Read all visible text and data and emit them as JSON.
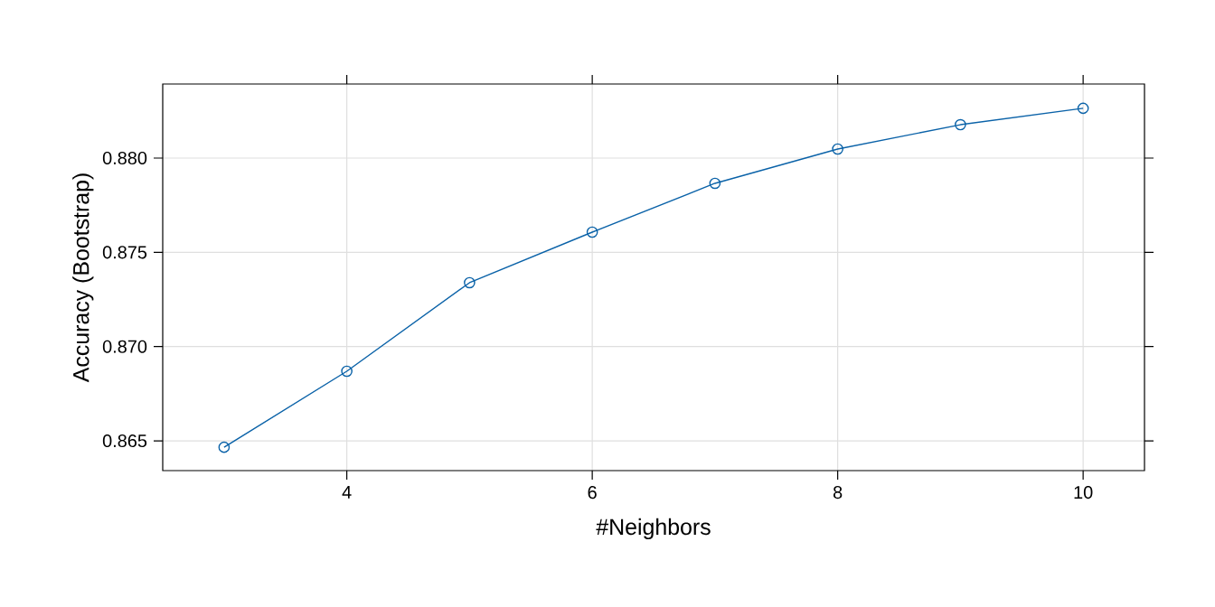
{
  "chart_data": {
    "type": "line",
    "xlabel": "#Neighbors",
    "ylabel": "Accuracy (Bootstrap)",
    "x": [
      3,
      4,
      5,
      6,
      7,
      8,
      9,
      10
    ],
    "series": [
      {
        "color": "#0a62a8",
        "values": [
          0.86466,
          0.86869,
          0.87339,
          0.87607,
          0.87866,
          0.88048,
          0.88177,
          0.88264
        ]
      }
    ],
    "xlim": [
      2.5,
      10.5
    ],
    "ylim": [
      0.86342,
      0.88393
    ],
    "xticks": [
      4,
      6,
      8,
      10
    ],
    "yticks": [
      0.865,
      {
        "value": 0.87,
        "label": "0.870"
      },
      0.875,
      {
        "value": 0.88,
        "label": "0.880"
      }
    ],
    "grid": true,
    "marker": "circle",
    "line_style": "solid"
  }
}
